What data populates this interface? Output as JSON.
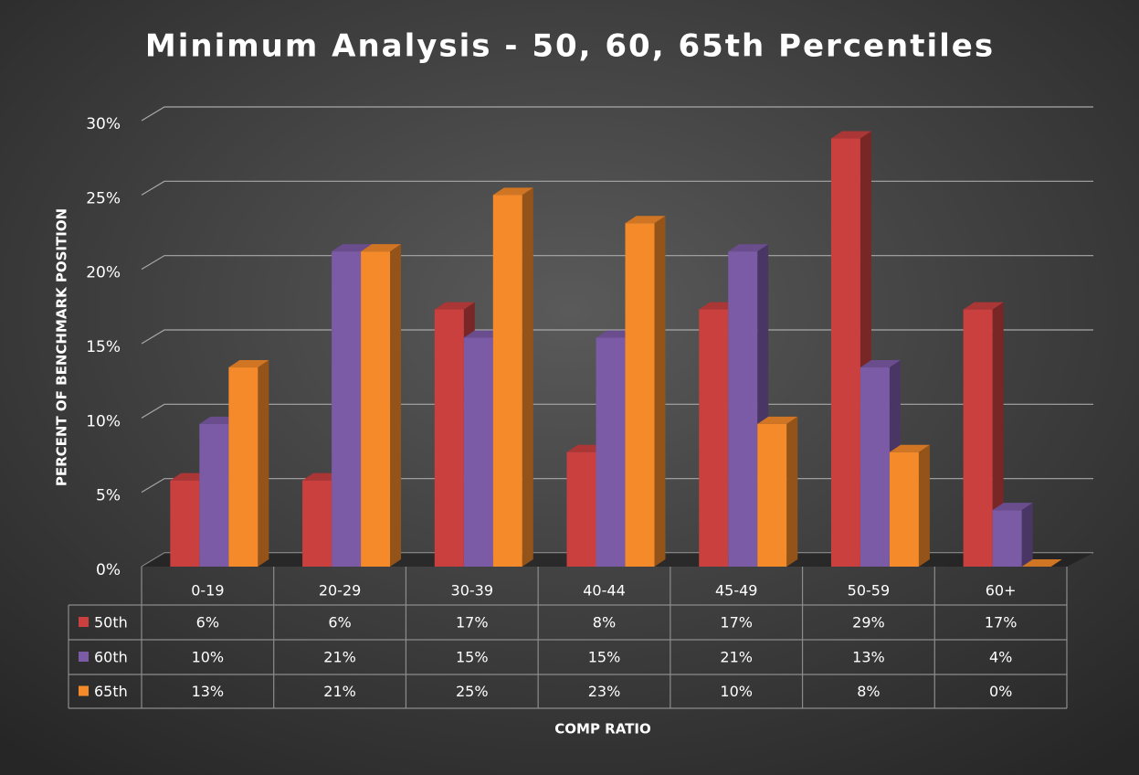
{
  "chart_data": {
    "type": "bar3d",
    "title": "Minimum Analysis - 50, 60, 65th Percentiles",
    "x_label": "COMP RATIO",
    "y_label": "PERCENT OF BENCHMARK POSITION",
    "categories": [
      "0-19",
      "20-29",
      "30-39",
      "40-44",
      "45-49",
      "50-59",
      "60+"
    ],
    "series": [
      {
        "name": "50th",
        "color": "#c9403f",
        "values": [
          5.8,
          5.8,
          17.3,
          7.7,
          17.3,
          28.8,
          17.3
        ],
        "value_labels": [
          "6%",
          "6%",
          "17%",
          "8%",
          "17%",
          "29%",
          "17%"
        ]
      },
      {
        "name": "60th",
        "color": "#7b5aa6",
        "values": [
          9.6,
          21.2,
          15.4,
          15.4,
          21.2,
          13.4,
          3.8
        ],
        "value_labels": [
          "10%",
          "21%",
          "15%",
          "15%",
          "21%",
          "13%",
          "4%"
        ]
      },
      {
        "name": "65th",
        "color": "#f58a2a",
        "values": [
          13.4,
          21.2,
          25,
          23.1,
          9.6,
          7.7,
          0
        ],
        "value_labels": [
          "13%",
          "21%",
          "25%",
          "23%",
          "10%",
          "8%",
          "0%"
        ]
      }
    ],
    "ylim": [
      0,
      30
    ],
    "yticks": [
      {
        "value": 0,
        "label": "0%"
      },
      {
        "value": 5,
        "label": "5%"
      },
      {
        "value": 10,
        "label": "10%"
      },
      {
        "value": 15,
        "label": "15%"
      },
      {
        "value": 20,
        "label": "20%"
      },
      {
        "value": 25,
        "label": "25%"
      },
      {
        "value": 30,
        "label": "30%"
      }
    ],
    "grid": true,
    "data_table": true
  }
}
